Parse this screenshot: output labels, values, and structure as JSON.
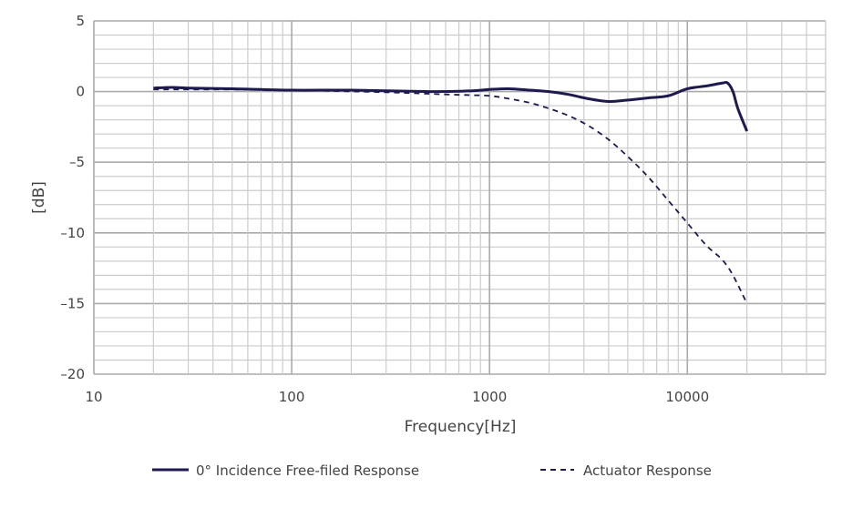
{
  "chart_data": {
    "type": "line",
    "xlabel": "Frequency[Hz]",
    "ylabel": "[dB]",
    "x_scale": "log",
    "xlim": [
      10,
      50000
    ],
    "ylim": [
      -20,
      5
    ],
    "x_ticks": [
      "10",
      "100",
      "1000",
      "10000"
    ],
    "y_ticks": [
      "5",
      "0",
      "-5",
      "-10",
      "-15",
      "-20"
    ],
    "grid": true,
    "legend_position": "bottom",
    "series": [
      {
        "name": "0° Incidence Free-filed Response",
        "style": "solid",
        "color": "#1e1a4d",
        "x": [
          20,
          25,
          30,
          50,
          100,
          200,
          500,
          800,
          1000,
          1250,
          1600,
          2000,
          2500,
          3150,
          4000,
          5000,
          6300,
          8000,
          10000,
          12500,
          15000,
          16000,
          17000,
          18000,
          20000
        ],
        "y": [
          0.25,
          0.3,
          0.25,
          0.2,
          0.1,
          0.1,
          0.0,
          0.05,
          0.15,
          0.2,
          0.1,
          0.0,
          -0.2,
          -0.5,
          -0.7,
          -0.6,
          -0.45,
          -0.3,
          0.2,
          0.4,
          0.6,
          0.6,
          0.0,
          -1.2,
          -2.8
        ]
      },
      {
        "name": "Actuator Response",
        "style": "dashed",
        "color": "#1e1a4d",
        "x": [
          20,
          50,
          100,
          300,
          600,
          800,
          1000,
          1250,
          1600,
          2000,
          2500,
          3150,
          4000,
          5000,
          6300,
          8000,
          10000,
          12500,
          15000,
          17000,
          20000
        ],
        "y": [
          0.15,
          0.15,
          0.1,
          -0.05,
          -0.2,
          -0.25,
          -0.3,
          -0.5,
          -0.8,
          -1.2,
          -1.7,
          -2.4,
          -3.4,
          -4.6,
          -6.0,
          -7.7,
          -9.3,
          -10.9,
          -11.9,
          -13.0,
          -15.0
        ]
      }
    ]
  }
}
